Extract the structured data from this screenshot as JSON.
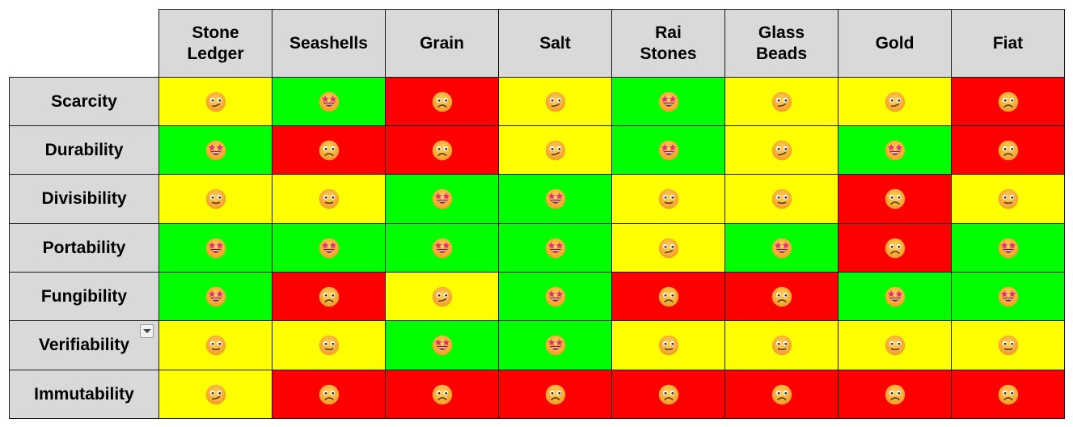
{
  "columns": [
    "Stone\nLedger",
    "Seashells",
    "Grain",
    "Salt",
    "Rai\nStones",
    "Glass\nBeads",
    "Gold",
    "Fiat"
  ],
  "rows": [
    {
      "label": "Scarcity",
      "ratings": [
        "neutral",
        "excellent",
        "poor",
        "neutral",
        "excellent",
        "neutral",
        "neutral",
        "poor"
      ]
    },
    {
      "label": "Durability",
      "ratings": [
        "excellent",
        "poor",
        "poor",
        "neutral",
        "excellent",
        "neutral",
        "excellent",
        "poor"
      ]
    },
    {
      "label": "Divisibility",
      "ratings": [
        "fair",
        "fair",
        "excellent",
        "excellent",
        "fair",
        "fair",
        "poor",
        "fair"
      ]
    },
    {
      "label": "Portability",
      "ratings": [
        "excellent",
        "excellent",
        "excellent",
        "excellent",
        "neutral",
        "excellent",
        "poor",
        "excellent"
      ]
    },
    {
      "label": "Fungibility",
      "ratings": [
        "excellent",
        "poor",
        "neutral",
        "excellent",
        "poor",
        "poor",
        "excellent",
        "excellent"
      ]
    },
    {
      "label": "Verifiability",
      "ratings": [
        "fair",
        "fair",
        "excellent",
        "excellent",
        "fair",
        "fair",
        "fair",
        "fair"
      ]
    },
    {
      "label": "Immutability",
      "ratings": [
        "neutral",
        "poor",
        "poor",
        "poor",
        "poor",
        "poor",
        "poor",
        "poor"
      ]
    }
  ],
  "rating_colors": {
    "excellent": "#00ff00",
    "neutral": "#ffff00",
    "fair": "#ffff00",
    "poor": "#ff0000"
  },
  "rating_icons": {
    "excellent": "star-struck-icon",
    "neutral": "confused-face-icon",
    "fair": "grimacing-face-icon",
    "poor": "frowning-face-icon"
  }
}
